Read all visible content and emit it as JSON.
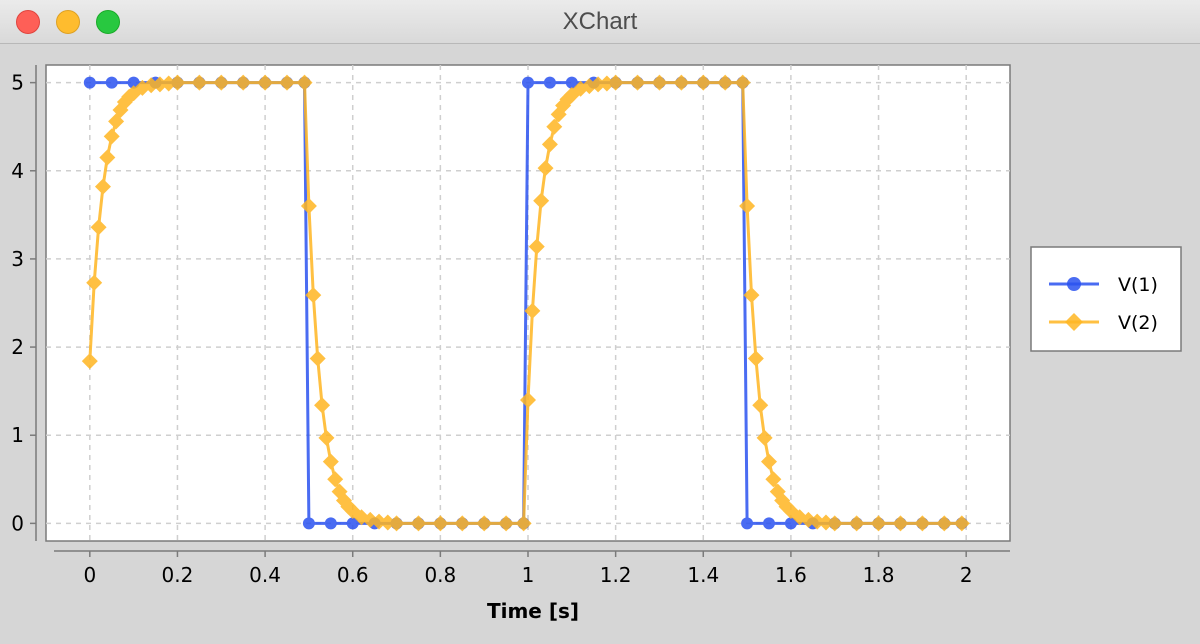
{
  "window": {
    "title": "XChart"
  },
  "chart_data": {
    "type": "line",
    "title": "",
    "xlabel": "Time [s]",
    "ylabel": "",
    "xlim": [
      -0.1,
      2.1
    ],
    "ylim": [
      -0.2,
      5.2
    ],
    "x_ticks": [
      "0",
      "0.2",
      "0.4",
      "0.6",
      "0.8",
      "1",
      "1.2",
      "1.4",
      "1.6",
      "1.8",
      "2"
    ],
    "y_ticks": [
      "0",
      "1",
      "2",
      "3",
      "4",
      "5"
    ],
    "grid": true,
    "legend_position": "right",
    "series": [
      {
        "name": "V(1)",
        "color": "#2a52f0",
        "marker": "circle",
        "description": "square wave, period 1 s, 0-5 V, high during first half of each period",
        "x": [
          0,
          0.05,
          0.1,
          0.15,
          0.2,
          0.25,
          0.3,
          0.35,
          0.4,
          0.45,
          0.49,
          0.5,
          0.55,
          0.6,
          0.65,
          0.7,
          0.75,
          0.8,
          0.85,
          0.9,
          0.95,
          0.99,
          1.0,
          1.05,
          1.1,
          1.15,
          1.2,
          1.25,
          1.3,
          1.35,
          1.4,
          1.45,
          1.49,
          1.5,
          1.55,
          1.6,
          1.65,
          1.7,
          1.75,
          1.8,
          1.85,
          1.9,
          1.95,
          1.99
        ],
        "y": [
          5,
          5,
          5,
          5,
          5,
          5,
          5,
          5,
          5,
          5,
          5,
          0,
          0,
          0,
          0,
          0,
          0,
          0,
          0,
          0,
          0,
          0,
          5,
          5,
          5,
          5,
          5,
          5,
          5,
          5,
          5,
          5,
          5,
          0,
          0,
          0,
          0,
          0,
          0,
          0,
          0,
          0,
          0,
          0
        ]
      },
      {
        "name": "V(2)",
        "color": "#ffb622",
        "marker": "diamond",
        "description": "RC-filtered response of V(1)",
        "x": [
          0,
          0.01,
          0.02,
          0.03,
          0.04,
          0.05,
          0.06,
          0.07,
          0.08,
          0.09,
          0.1,
          0.12,
          0.14,
          0.16,
          0.18,
          0.2,
          0.25,
          0.3,
          0.35,
          0.4,
          0.45,
          0.49,
          0.5,
          0.51,
          0.52,
          0.53,
          0.54,
          0.55,
          0.56,
          0.57,
          0.58,
          0.59,
          0.6,
          0.62,
          0.64,
          0.66,
          0.68,
          0.7,
          0.75,
          0.8,
          0.85,
          0.9,
          0.95,
          0.99,
          1.0,
          1.01,
          1.02,
          1.03,
          1.04,
          1.05,
          1.06,
          1.07,
          1.08,
          1.09,
          1.1,
          1.12,
          1.14,
          1.16,
          1.18,
          1.2,
          1.25,
          1.3,
          1.35,
          1.4,
          1.45,
          1.49,
          1.5,
          1.51,
          1.52,
          1.53,
          1.54,
          1.55,
          1.56,
          1.57,
          1.58,
          1.59,
          1.6,
          1.62,
          1.64,
          1.66,
          1.68,
          1.7,
          1.75,
          1.8,
          1.85,
          1.9,
          1.95,
          1.99
        ],
        "y": [
          1.84,
          2.73,
          3.36,
          3.82,
          4.15,
          4.39,
          4.56,
          4.69,
          4.78,
          4.84,
          4.88,
          4.94,
          4.97,
          4.98,
          4.99,
          5.0,
          5.0,
          5.0,
          5.0,
          5.0,
          5.0,
          5.0,
          3.6,
          2.59,
          1.87,
          1.34,
          0.97,
          0.7,
          0.5,
          0.36,
          0.26,
          0.19,
          0.14,
          0.07,
          0.04,
          0.02,
          0.01,
          0.0,
          0.0,
          0.0,
          0.0,
          0.0,
          0.0,
          0.0,
          1.4,
          2.41,
          3.14,
          3.66,
          4.03,
          4.3,
          4.5,
          4.64,
          4.74,
          4.81,
          4.86,
          4.93,
          4.96,
          4.98,
          4.99,
          5.0,
          5.0,
          5.0,
          5.0,
          5.0,
          5.0,
          5.0,
          3.6,
          2.59,
          1.87,
          1.34,
          0.97,
          0.7,
          0.5,
          0.36,
          0.26,
          0.19,
          0.14,
          0.07,
          0.04,
          0.02,
          0.01,
          0.0,
          0.0,
          0.0,
          0.0,
          0.0,
          0.0,
          0.0
        ]
      }
    ]
  }
}
